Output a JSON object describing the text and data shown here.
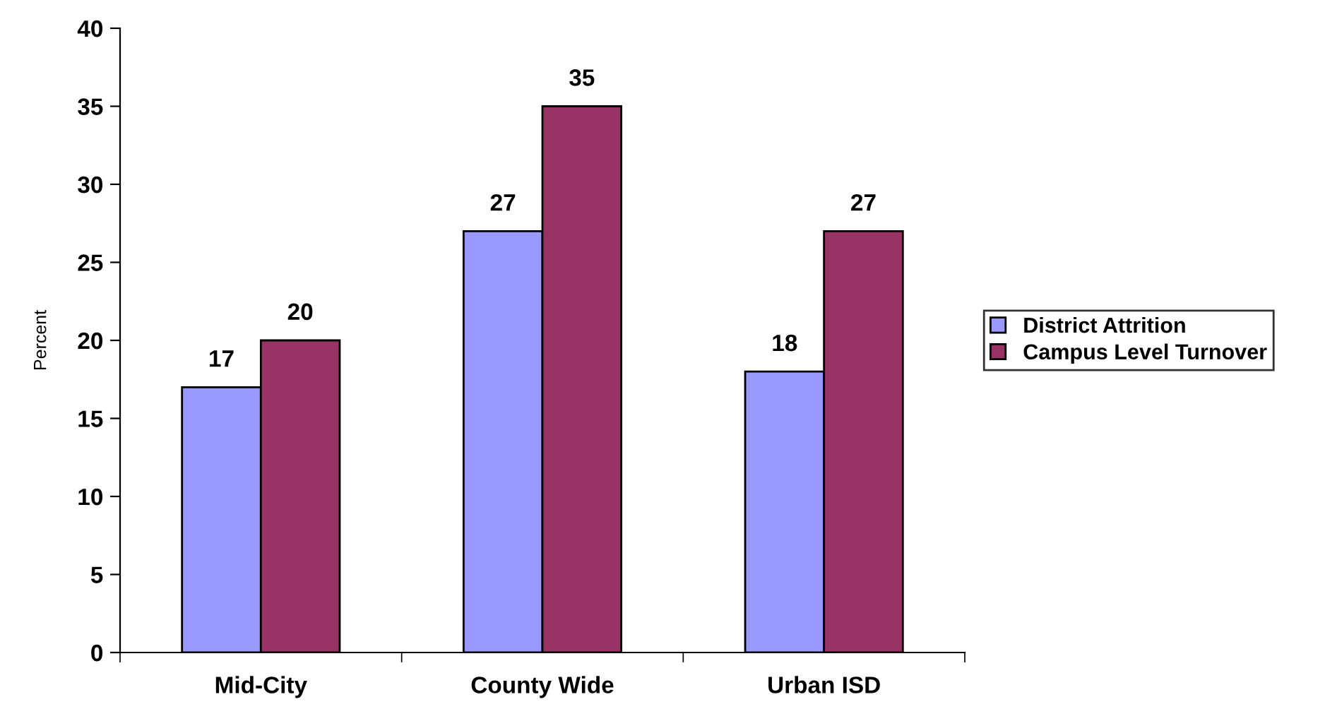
{
  "chart_data": {
    "type": "bar",
    "ylabel": "Percent",
    "categories": [
      "Mid-City",
      "County Wide",
      "Urban ISD"
    ],
    "series": [
      {
        "name": "District Attrition",
        "color": "#9999ff",
        "values": [
          17,
          27,
          18
        ]
      },
      {
        "name": "Campus Level Turnover",
        "color": "#993366",
        "values": [
          20,
          35,
          27
        ]
      }
    ],
    "ylim": [
      0,
      40
    ],
    "yticks": [
      0,
      5,
      10,
      15,
      20,
      25,
      30,
      35,
      40
    ],
    "grid": false,
    "legend": "right",
    "data_labels": true
  }
}
